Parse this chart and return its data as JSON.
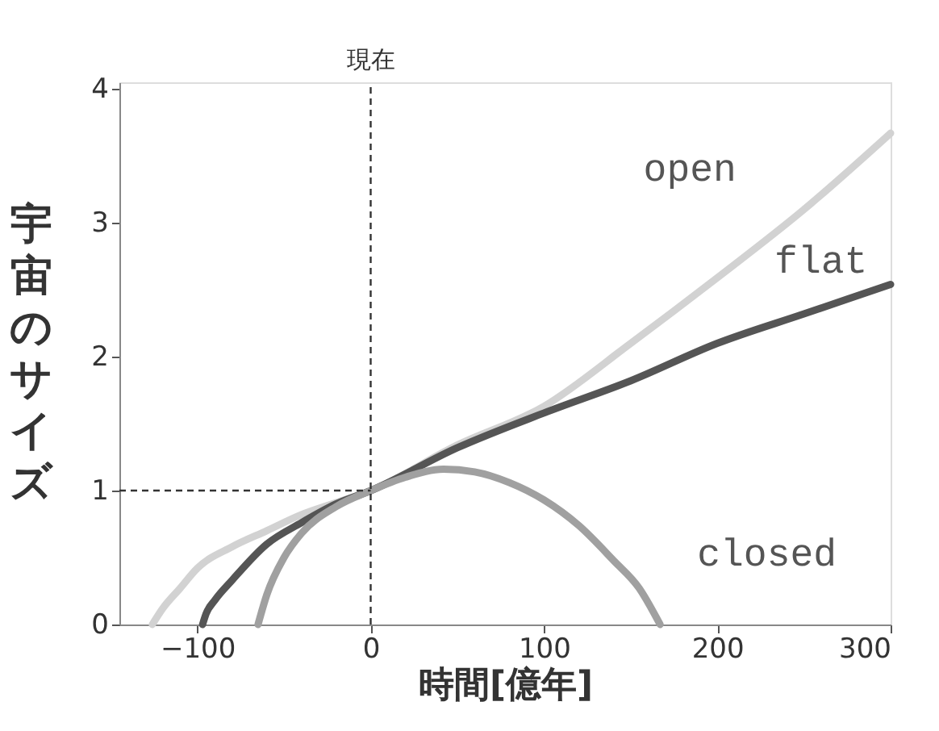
{
  "chart_data": {
    "type": "line",
    "xlabel": "時間[億年]",
    "ylabel": "宇宙のサイズ",
    "xlim": [
      -145,
      300
    ],
    "ylim": [
      0,
      4.05
    ],
    "xticks": [
      -100,
      0,
      100,
      200,
      300
    ],
    "yticks": [
      0,
      1,
      2,
      3,
      4
    ],
    "grid": false,
    "line_style": "solid",
    "marker": "none",
    "series": [
      {
        "name": "open",
        "color": "#d2d2d2",
        "x": [
          -126,
          -120,
          -110,
          -100,
          -80,
          -60,
          -40,
          -20,
          0,
          50,
          100,
          150,
          200,
          250,
          300
        ],
        "values": [
          0,
          0.12,
          0.27,
          0.42,
          0.58,
          0.7,
          0.82,
          0.91,
          1,
          1.34,
          1.63,
          2.1,
          2.59,
          3.1,
          3.67
        ]
      },
      {
        "name": "flat",
        "color": "#555555",
        "x": [
          -97,
          -95,
          -90,
          -80,
          -60,
          -40,
          -20,
          0,
          50,
          100,
          150,
          200,
          250,
          300
        ],
        "values": [
          0,
          0.08,
          0.18,
          0.33,
          0.6,
          0.76,
          0.9,
          1,
          1.32,
          1.58,
          1.82,
          2.1,
          2.32,
          2.54
        ]
      },
      {
        "name": "closed",
        "color": "#a0a0a0",
        "x": [
          -65,
          -60,
          -50,
          -40,
          -20,
          0,
          20,
          42,
          60,
          80,
          100,
          120,
          140,
          155,
          167
        ],
        "values": [
          0,
          0.22,
          0.5,
          0.68,
          0.88,
          1,
          1.1,
          1.16,
          1.14,
          1.06,
          0.93,
          0.74,
          0.48,
          0.27,
          0
        ]
      }
    ],
    "ref_lines": [
      {
        "axis": "x",
        "value": 0,
        "label": "現在",
        "line_style": "dashed",
        "color": "#333333"
      },
      {
        "axis": "y",
        "value": 1,
        "label": null,
        "line_style": "dashed",
        "color": "#333333"
      }
    ]
  }
}
